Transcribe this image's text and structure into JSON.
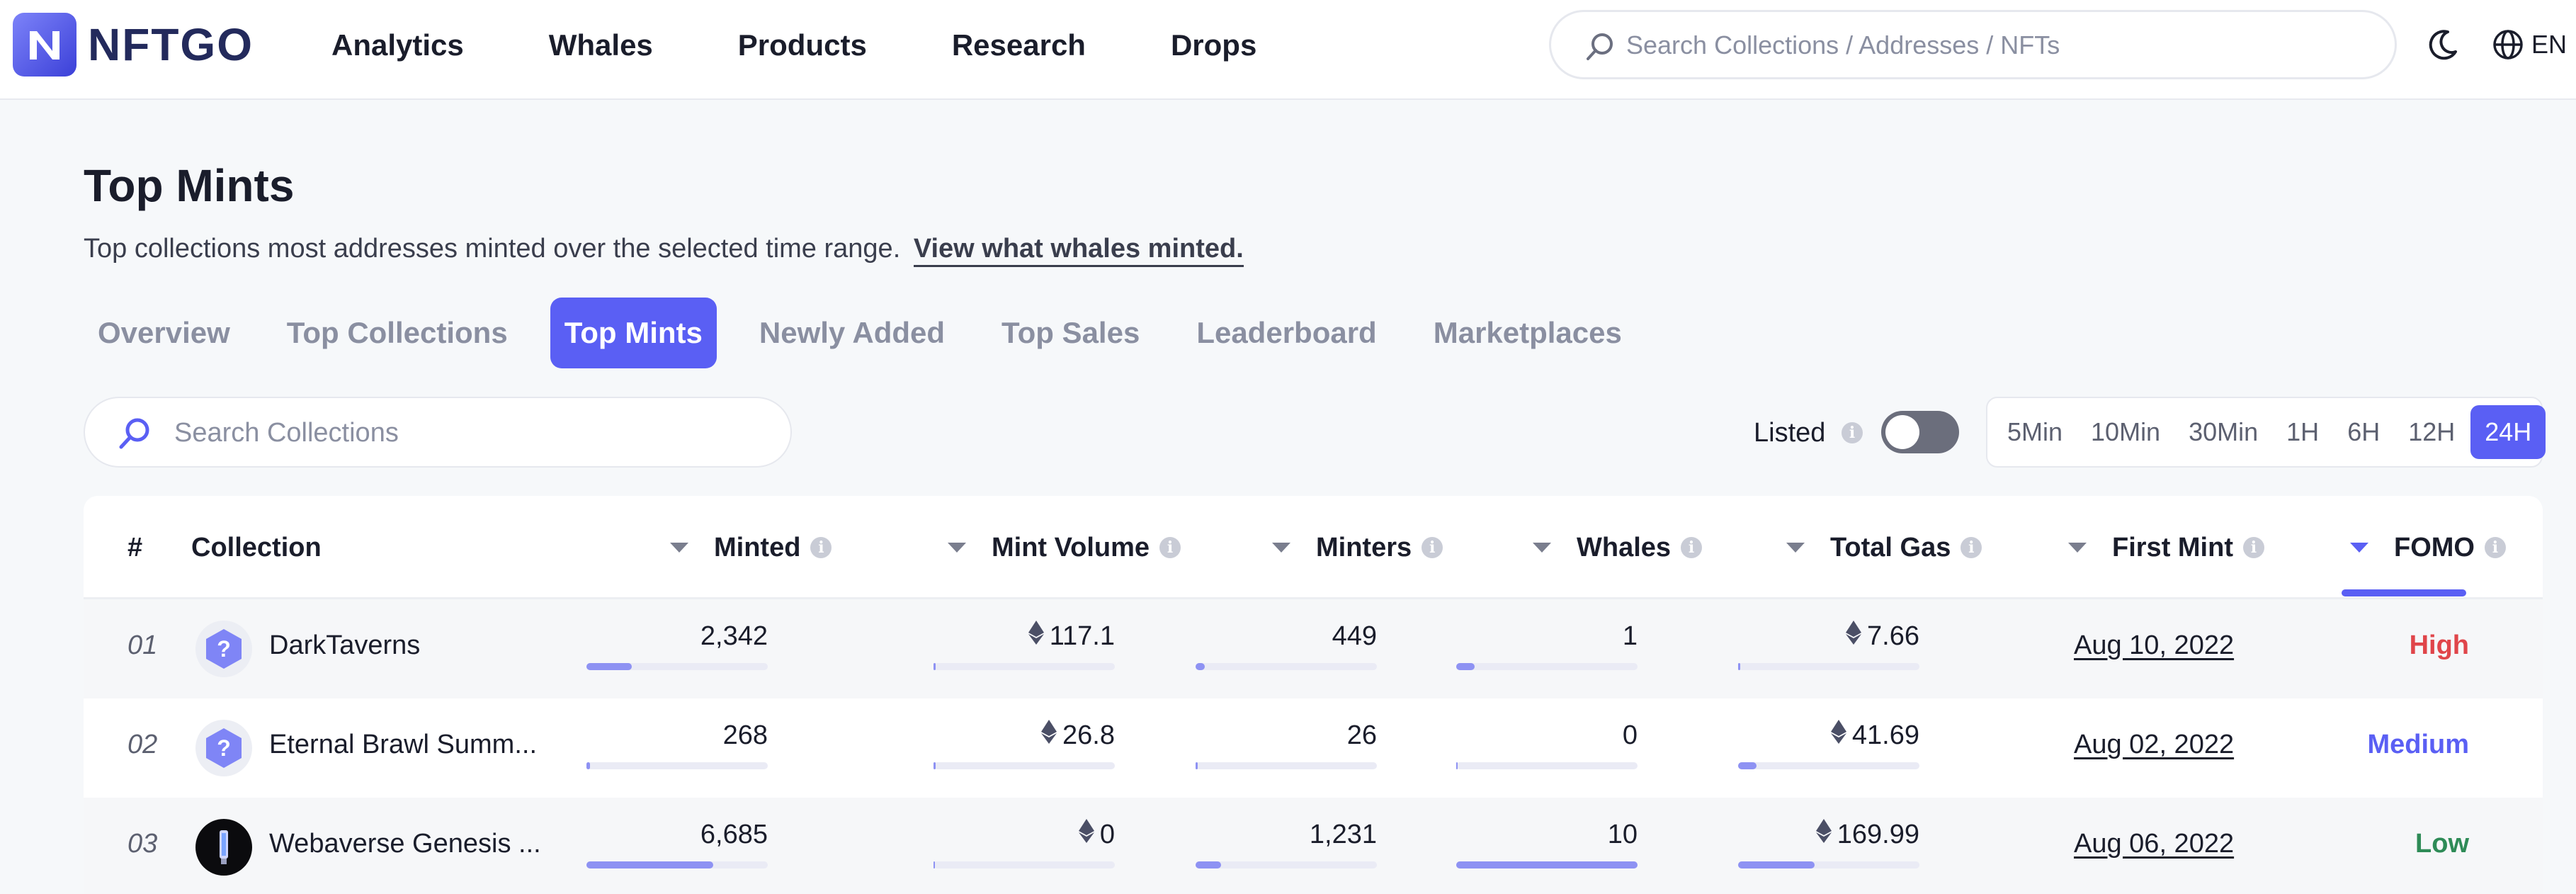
{
  "nav": {
    "logo_text": "NFTGO",
    "menu": [
      "Analytics",
      "Whales",
      "Products",
      "Research",
      "Drops"
    ],
    "search_placeholder": "Search Collections / Addresses / NFTs",
    "language": "EN"
  },
  "header": {
    "title": "Top Mints",
    "subtitle": "Top collections most addresses minted over the selected time range.",
    "subtitle_link": "View what whales minted."
  },
  "tabs": [
    "Overview",
    "Top Collections",
    "Top Mints",
    "Newly Added",
    "Top Sales",
    "Leaderboard",
    "Marketplaces"
  ],
  "active_tab": "Top Mints",
  "filters": {
    "search_placeholder": "Search Collections",
    "listed_label": "Listed",
    "listed_on": false,
    "ranges": [
      "5Min",
      "10Min",
      "30Min",
      "1H",
      "6H",
      "12H",
      "24H"
    ],
    "active_range": "24H"
  },
  "table": {
    "columns": {
      "rank": "#",
      "collection": "Collection",
      "minted": "Minted",
      "mint_volume": "Mint Volume",
      "minters": "Minters",
      "whales": "Whales",
      "total_gas": "Total Gas",
      "first_mint": "First Mint",
      "fomo": "FOMO"
    },
    "sorted_by": "FOMO",
    "rows": [
      {
        "rank": "01",
        "avatar": "question-hex",
        "name": "DarkTaverns",
        "minted": "2,342",
        "minted_frac": 0.25,
        "mint_volume": "117.1",
        "mint_volume_frac": 0.005,
        "minters": "449",
        "minters_frac": 0.05,
        "whales": "1",
        "whales_frac": 0.1,
        "total_gas": "7.66",
        "total_gas_frac": 0.01,
        "first_mint": "Aug 10, 2022",
        "fomo": "High",
        "fomo_color": "#e0454a"
      },
      {
        "rank": "02",
        "avatar": "question-hex",
        "name": "Eternal Brawl Summ...",
        "minted": "268",
        "minted_frac": 0.02,
        "mint_volume": "26.8",
        "mint_volume_frac": 0.005,
        "minters": "26",
        "minters_frac": 0.005,
        "whales": "0",
        "whales_frac": 0,
        "total_gas": "41.69",
        "total_gas_frac": 0.1,
        "first_mint": "Aug 02, 2022",
        "fomo": "Medium",
        "fomo_color": "#5a5ff4"
      },
      {
        "rank": "03",
        "avatar": "dark",
        "name": "Webaverse Genesis ...",
        "minted": "6,685",
        "minted_frac": 0.7,
        "mint_volume": "0",
        "mint_volume_frac": 0,
        "minters": "1,231",
        "minters_frac": 0.14,
        "whales": "10",
        "whales_frac": 1.0,
        "total_gas": "169.99",
        "total_gas_frac": 0.42,
        "first_mint": "Aug 06, 2022",
        "fomo": "Low",
        "fomo_color": "#2e8b57"
      }
    ]
  }
}
